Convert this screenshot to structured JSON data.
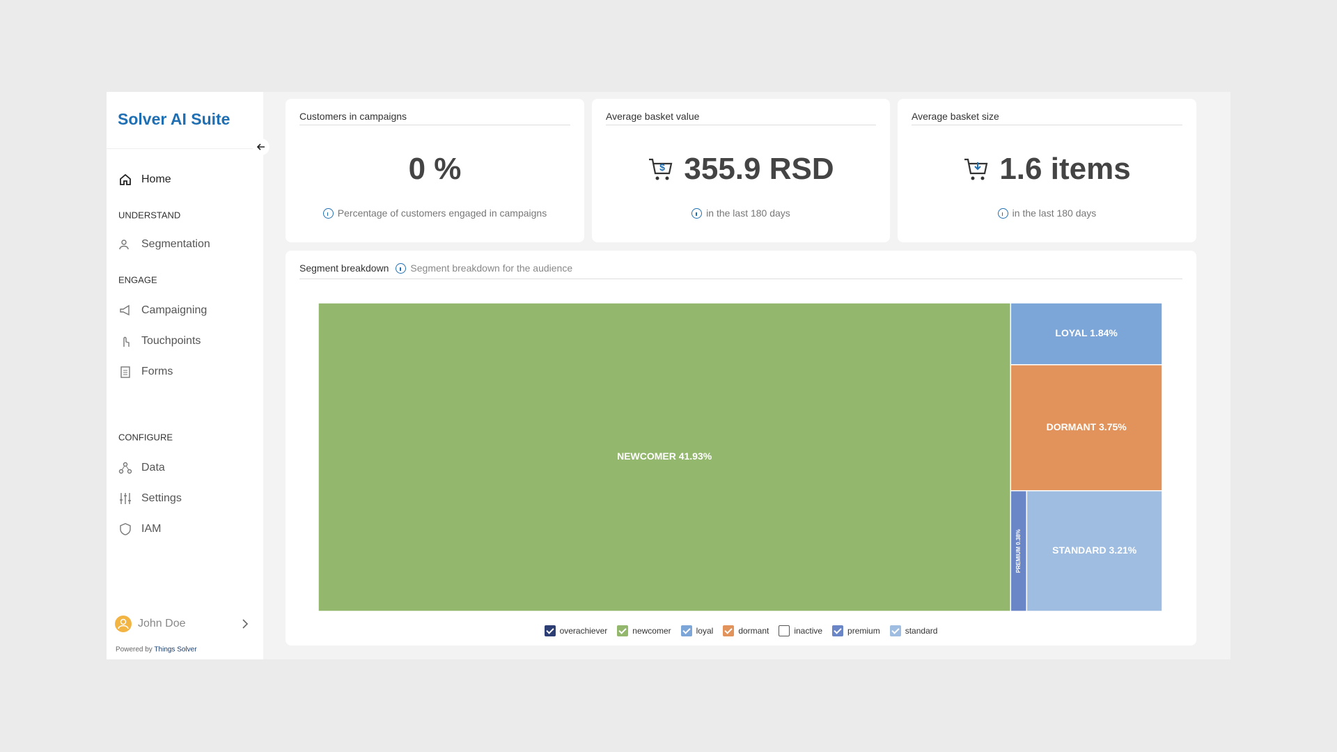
{
  "sidebar": {
    "brand": "Solver AI Suite",
    "home": "Home",
    "sections": [
      {
        "title": "UNDERSTAND",
        "items": [
          "Segmentation"
        ]
      },
      {
        "title": "ENGAGE",
        "items": [
          "Campaigning",
          "Touchpoints",
          "Forms"
        ]
      },
      {
        "title": "CONFIGURE",
        "items": [
          "Data",
          "Settings",
          "IAM"
        ]
      }
    ],
    "user": "John Doe",
    "powered_by": "Powered by",
    "powered_company": "Things Solver"
  },
  "cards": [
    {
      "title": "Customers in campaigns",
      "value": "0 %",
      "note": "Percentage of customers engaged in campaigns"
    },
    {
      "title": "Average basket value",
      "value": "355.9 RSD",
      "note": "in the last 180 days"
    },
    {
      "title": "Average basket size",
      "value": "1.6 items",
      "note": "in the last 180 days"
    }
  ],
  "segment_panel": {
    "title": "Segment breakdown",
    "subtitle": "Segment breakdown for the audience"
  },
  "chart_data": {
    "type": "treemap",
    "categories": [
      "overachiever",
      "newcomer",
      "loyal",
      "dormant",
      "inactive",
      "premium",
      "standard"
    ],
    "colors": [
      "#2c3e73",
      "#93b76d",
      "#7da6d8",
      "#e2935b",
      "#ffffff",
      "#6a86c6",
      "#9fbde0"
    ],
    "checked": [
      true,
      true,
      true,
      true,
      false,
      true,
      true
    ],
    "values": [
      null,
      41.93,
      1.84,
      3.75,
      null,
      0.38,
      3.21
    ],
    "value_labels": [
      null,
      "NEWCOMER 41.93%",
      "LOYAL 1.84%",
      "DORMANT 3.75%",
      null,
      "PREMIUM 0.38%",
      "STANDARD 3.21%"
    ]
  }
}
